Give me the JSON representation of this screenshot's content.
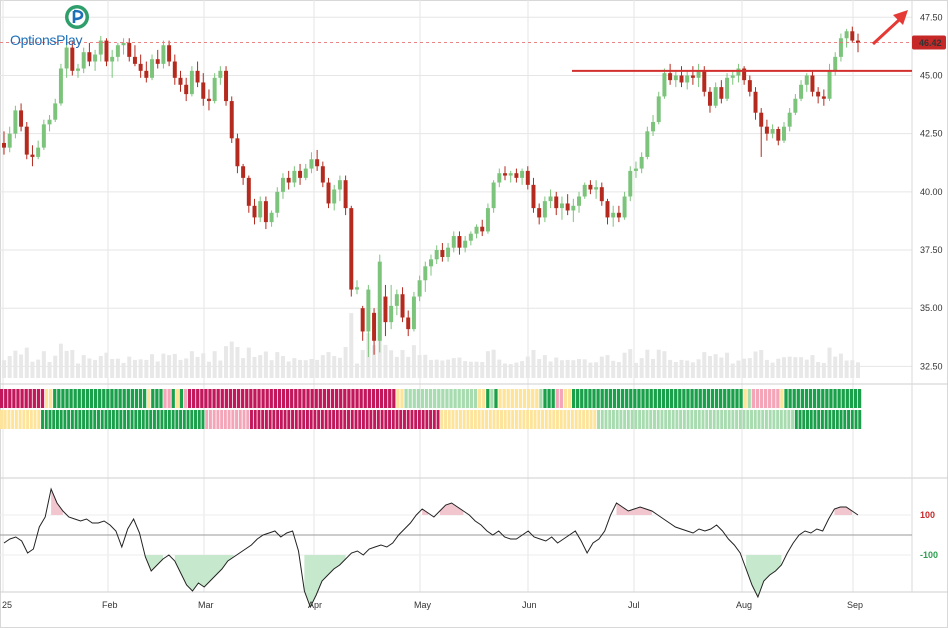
{
  "brand": {
    "name": "OptionsPlay",
    "logo_icon": "options-play-logo-icon"
  },
  "chart_data": {
    "type": "candlestick",
    "price_axis": {
      "ticks": [
        "47.50",
        "45.00",
        "42.50",
        "40.00",
        "37.50",
        "35.00",
        "32.50"
      ],
      "ylim": [
        32,
        47.9
      ]
    },
    "last_price": {
      "label": "46.42",
      "value": 46.42,
      "color": "#c62828"
    },
    "resistance_level": 45.2,
    "x_axis": {
      "ticks": [
        "25",
        "Feb",
        "Mar",
        "Apr",
        "May",
        "Jun",
        "Jul",
        "Aug",
        "Sep"
      ]
    },
    "oscillator": {
      "ticks": [
        "100",
        "-100"
      ],
      "upper_color": "#c62828",
      "lower_color": "#2e9e4f"
    },
    "colors": {
      "up": "#7cc47c",
      "down": "#b52a1e",
      "grid": "#e6e6e6",
      "arrow": "#e53935",
      "volume": "#e8e8e8"
    },
    "indicator_palette": {
      "R": "#c2185b",
      "P": "#f4a6b8",
      "Y": "#fde49a",
      "L": "#a8dcb0",
      "G": "#1a9f4a"
    },
    "indicator_row1": "RRRRRRRRRRRYYGGGGGGGGGGGGGGGGGGGGGGGYGGGPPGYGPRRRRRRRRRRRRRRRRRRRRRRRRRRRRRRRRRRRRRRRRRRRRRRRRRRRYYLLLLLLLLLLLLLLLLLLYYGLGYYYYYYYYYYLGGGPPYYGGGGGGGGGGGGGGGGGGGGGGGGGGGGGGGGGGGGGGGGGGYLPPPPPPPYGGGGGGGGGGGGGGGGGGG",
    "indicator_row2": "YYYYYYYYYYYGGGGGGGGGGGGGGGGGGGGGGGGGGGGGGGGGGGGGGGGGGGGPPPPPPPPPPPPRRRRRRRRRRRRRRRRRRRRRRRRRRRRRRRRRRRRRRRRRRRRRRRRRRRYYYYYYYYYYYYYYYYYYYYYYYYYYYYYYYYYYYYYYYYYYLLLLLLLLLLLLLLLLLLLLLLLLLLLLLLLLLLLLLLLLLLLLLLLLLLLLLGGGGGGGGGGGGGGGGGG",
    "candles": [
      [
        42.1,
        42.6,
        41.6,
        41.9
      ],
      [
        41.9,
        42.8,
        41.7,
        42.5
      ],
      [
        42.5,
        43.7,
        42.3,
        43.5
      ],
      [
        43.5,
        43.8,
        42.6,
        42.8
      ],
      [
        42.8,
        43.0,
        41.4,
        41.6
      ],
      [
        41.6,
        42.0,
        41.1,
        41.5
      ],
      [
        41.5,
        42.2,
        41.4,
        41.9
      ],
      [
        41.9,
        43.1,
        41.8,
        42.9
      ],
      [
        42.9,
        43.3,
        42.6,
        43.1
      ],
      [
        43.1,
        44.0,
        43.0,
        43.8
      ],
      [
        43.8,
        45.5,
        43.7,
        45.3
      ],
      [
        45.3,
        46.4,
        44.9,
        46.2
      ],
      [
        46.2,
        46.5,
        45.0,
        45.2
      ],
      [
        45.2,
        45.5,
        44.9,
        45.3
      ],
      [
        45.3,
        46.2,
        45.1,
        46.0
      ],
      [
        46.0,
        46.4,
        45.4,
        45.6
      ],
      [
        45.6,
        46.1,
        45.2,
        45.9
      ],
      [
        45.9,
        46.7,
        45.6,
        46.5
      ],
      [
        46.5,
        46.6,
        45.4,
        45.6
      ],
      [
        45.6,
        46.1,
        44.9,
        45.8
      ],
      [
        45.8,
        46.4,
        45.6,
        46.3
      ],
      [
        46.3,
        46.6,
        45.9,
        46.4
      ],
      [
        46.4,
        46.6,
        45.6,
        45.8
      ],
      [
        45.8,
        46.3,
        45.4,
        45.5
      ],
      [
        45.5,
        45.9,
        44.9,
        45.2
      ],
      [
        45.2,
        45.6,
        44.7,
        44.9
      ],
      [
        44.9,
        45.9,
        44.8,
        45.7
      ],
      [
        45.7,
        46.1,
        45.3,
        45.5
      ],
      [
        45.5,
        46.5,
        45.3,
        46.3
      ],
      [
        46.3,
        46.5,
        45.4,
        45.6
      ],
      [
        45.6,
        45.9,
        44.6,
        44.9
      ],
      [
        44.9,
        45.2,
        44.3,
        44.6
      ],
      [
        44.6,
        44.9,
        43.9,
        44.2
      ],
      [
        44.2,
        45.4,
        44.1,
        45.2
      ],
      [
        45.2,
        45.6,
        44.5,
        44.7
      ],
      [
        44.7,
        45.1,
        43.7,
        44.0
      ],
      [
        44.0,
        44.4,
        43.5,
        43.9
      ],
      [
        43.9,
        45.1,
        43.8,
        44.9
      ],
      [
        44.9,
        45.4,
        44.6,
        45.2
      ],
      [
        45.2,
        45.4,
        43.7,
        43.9
      ],
      [
        43.9,
        44.1,
        42.1,
        42.3
      ],
      [
        42.3,
        42.5,
        40.8,
        41.1
      ],
      [
        41.1,
        41.2,
        40.3,
        40.6
      ],
      [
        40.6,
        40.7,
        39.1,
        39.4
      ],
      [
        39.4,
        39.7,
        38.6,
        38.9
      ],
      [
        38.9,
        39.8,
        38.7,
        39.6
      ],
      [
        39.6,
        39.8,
        38.4,
        38.7
      ],
      [
        38.7,
        39.2,
        38.5,
        39.1
      ],
      [
        39.1,
        40.2,
        38.9,
        40.0
      ],
      [
        40.0,
        40.8,
        39.7,
        40.6
      ],
      [
        40.6,
        40.9,
        40.1,
        40.4
      ],
      [
        40.4,
        41.1,
        40.2,
        40.9
      ],
      [
        40.9,
        41.2,
        40.3,
        40.6
      ],
      [
        40.6,
        41.2,
        40.5,
        41.0
      ],
      [
        41.0,
        41.7,
        40.8,
        41.4
      ],
      [
        41.4,
        41.8,
        40.9,
        41.1
      ],
      [
        41.1,
        41.3,
        40.2,
        40.4
      ],
      [
        40.4,
        40.6,
        39.3,
        39.5
      ],
      [
        39.5,
        40.3,
        39.2,
        40.1
      ],
      [
        40.1,
        40.7,
        39.6,
        40.5
      ],
      [
        40.5,
        40.7,
        39.0,
        39.3
      ],
      [
        39.3,
        39.4,
        35.5,
        35.8
      ],
      [
        35.8,
        36.2,
        35.6,
        35.9
      ],
      [
        35.0,
        35.1,
        33.6,
        34.0
      ],
      [
        34.0,
        36.0,
        32.9,
        35.8
      ],
      [
        34.8,
        35.0,
        33.0,
        33.6
      ],
      [
        33.6,
        37.3,
        33.1,
        37.0
      ],
      [
        35.5,
        36.0,
        33.8,
        34.4
      ],
      [
        34.4,
        36.0,
        34.1,
        35.1
      ],
      [
        35.1,
        35.8,
        34.7,
        35.6
      ],
      [
        35.6,
        35.9,
        34.4,
        34.6
      ],
      [
        34.6,
        34.9,
        33.8,
        34.1
      ],
      [
        34.1,
        35.7,
        34.0,
        35.5
      ],
      [
        35.5,
        36.4,
        35.3,
        36.2
      ],
      [
        36.2,
        37.0,
        35.7,
        36.8
      ],
      [
        36.8,
        37.3,
        36.4,
        37.1
      ],
      [
        37.1,
        37.7,
        36.9,
        37.5
      ],
      [
        37.5,
        37.8,
        37.0,
        37.2
      ],
      [
        37.2,
        37.8,
        37.0,
        37.6
      ],
      [
        37.6,
        38.3,
        37.4,
        38.1
      ],
      [
        38.1,
        38.3,
        37.3,
        37.6
      ],
      [
        37.6,
        38.1,
        37.4,
        37.9
      ],
      [
        37.9,
        38.3,
        37.7,
        38.2
      ],
      [
        38.2,
        38.6,
        38.0,
        38.5
      ],
      [
        38.5,
        38.8,
        38.1,
        38.3
      ],
      [
        38.3,
        39.5,
        38.2,
        39.3
      ],
      [
        39.3,
        40.5,
        39.1,
        40.4
      ],
      [
        40.4,
        41.0,
        40.2,
        40.8
      ],
      [
        40.8,
        41.1,
        40.5,
        40.7
      ],
      [
        40.7,
        40.9,
        40.4,
        40.8
      ],
      [
        40.8,
        41.0,
        40.4,
        40.6
      ],
      [
        40.6,
        41.0,
        40.3,
        40.9
      ],
      [
        40.9,
        41.1,
        40.1,
        40.3
      ],
      [
        40.3,
        40.6,
        39.1,
        39.3
      ],
      [
        39.3,
        39.5,
        38.6,
        38.9
      ],
      [
        38.9,
        39.8,
        38.7,
        39.6
      ],
      [
        39.6,
        40.1,
        39.3,
        39.8
      ],
      [
        39.8,
        40.0,
        39.0,
        39.3
      ],
      [
        39.3,
        39.8,
        38.8,
        39.5
      ],
      [
        39.5,
        39.9,
        39.0,
        39.2
      ],
      [
        39.2,
        39.7,
        38.7,
        39.4
      ],
      [
        39.4,
        40.0,
        39.1,
        39.8
      ],
      [
        39.8,
        40.4,
        39.7,
        40.3
      ],
      [
        40.3,
        40.5,
        39.9,
        40.1
      ],
      [
        40.1,
        40.5,
        39.7,
        40.2
      ],
      [
        40.2,
        40.4,
        39.4,
        39.6
      ],
      [
        39.6,
        39.7,
        38.6,
        38.9
      ],
      [
        38.9,
        39.4,
        38.5,
        39.1
      ],
      [
        39.1,
        39.4,
        38.7,
        38.9
      ],
      [
        38.9,
        40.0,
        38.8,
        39.8
      ],
      [
        39.8,
        41.1,
        39.6,
        40.9
      ],
      [
        40.9,
        41.3,
        40.6,
        41.0
      ],
      [
        41.0,
        41.7,
        40.8,
        41.5
      ],
      [
        41.5,
        42.8,
        41.4,
        42.6
      ],
      [
        42.6,
        43.3,
        42.4,
        43.0
      ],
      [
        43.0,
        44.3,
        42.9,
        44.1
      ],
      [
        44.1,
        45.3,
        44.0,
        45.1
      ],
      [
        45.1,
        45.5,
        44.6,
        44.8
      ],
      [
        44.8,
        45.2,
        44.5,
        45.0
      ],
      [
        45.0,
        45.4,
        44.5,
        44.7
      ],
      [
        44.7,
        45.2,
        44.4,
        45.0
      ],
      [
        45.0,
        45.4,
        44.6,
        44.9
      ],
      [
        44.9,
        45.5,
        44.5,
        45.2
      ],
      [
        45.2,
        45.4,
        44.1,
        44.3
      ],
      [
        44.3,
        44.5,
        43.4,
        43.7
      ],
      [
        43.7,
        44.7,
        43.6,
        44.5
      ],
      [
        44.5,
        44.8,
        43.8,
        44.0
      ],
      [
        44.0,
        45.1,
        43.9,
        44.9
      ],
      [
        44.9,
        45.2,
        44.6,
        45.0
      ],
      [
        45.0,
        45.5,
        44.7,
        45.3
      ],
      [
        45.3,
        45.4,
        44.6,
        44.8
      ],
      [
        44.8,
        45.0,
        44.1,
        44.3
      ],
      [
        44.3,
        44.5,
        43.1,
        43.4
      ],
      [
        43.4,
        43.6,
        41.5,
        42.8
      ],
      [
        42.8,
        43.1,
        42.2,
        42.5
      ],
      [
        42.5,
        42.9,
        42.3,
        42.7
      ],
      [
        42.7,
        42.8,
        42.0,
        42.2
      ],
      [
        42.2,
        43.0,
        42.1,
        42.8
      ],
      [
        42.8,
        43.6,
        42.6,
        43.4
      ],
      [
        43.4,
        44.2,
        43.3,
        44.0
      ],
      [
        44.0,
        44.8,
        43.9,
        44.6
      ],
      [
        44.6,
        45.1,
        44.3,
        45.0
      ],
      [
        45.0,
        45.2,
        44.1,
        44.3
      ],
      [
        44.3,
        44.5,
        43.8,
        44.1
      ],
      [
        44.1,
        44.4,
        43.7,
        44.0
      ],
      [
        44.0,
        45.5,
        43.9,
        45.2
      ],
      [
        45.2,
        46.0,
        45.0,
        45.8
      ],
      [
        45.8,
        46.8,
        45.6,
        46.6
      ],
      [
        46.6,
        47.0,
        46.2,
        46.9
      ],
      [
        46.9,
        47.1,
        46.4,
        46.5
      ],
      [
        46.5,
        46.8,
        46.0,
        46.4
      ]
    ],
    "oscillator_values": [
      -40,
      -20,
      -10,
      -30,
      -90,
      -70,
      40,
      90,
      230,
      160,
      120,
      90,
      80,
      70,
      80,
      60,
      60,
      70,
      50,
      20,
      -60,
      30,
      80,
      10,
      -110,
      -180,
      -150,
      -120,
      -100,
      -130,
      -190,
      -250,
      -280,
      -240,
      -260,
      -230,
      -200,
      -170,
      -130,
      -110,
      -90,
      -70,
      -50,
      -20,
      0,
      10,
      20,
      -10,
      10,
      20,
      -80,
      -280,
      -360,
      -300,
      -230,
      -200,
      -170,
      -150,
      -120,
      -90,
      -80,
      -100,
      -70,
      -60,
      -50,
      -60,
      -40,
      0,
      30,
      60,
      100,
      130,
      110,
      90,
      120,
      150,
      160,
      140,
      120,
      100,
      70,
      50,
      20,
      0,
      20,
      -10,
      -20,
      -20,
      0,
      20,
      -10,
      -20,
      -30,
      -10,
      -40,
      -20,
      0,
      20,
      -30,
      -90,
      -40,
      -20,
      20,
      100,
      160,
      140,
      120,
      130,
      140,
      130,
      120,
      100,
      80,
      60,
      40,
      30,
      20,
      10,
      30,
      20,
      30,
      50,
      20,
      -20,
      -50,
      -90,
      -170,
      -250,
      -310,
      -230,
      -200,
      -180,
      -150,
      -90,
      -40,
      0,
      20,
      10,
      30,
      20,
      80,
      130,
      140,
      140,
      120,
      100
    ]
  }
}
